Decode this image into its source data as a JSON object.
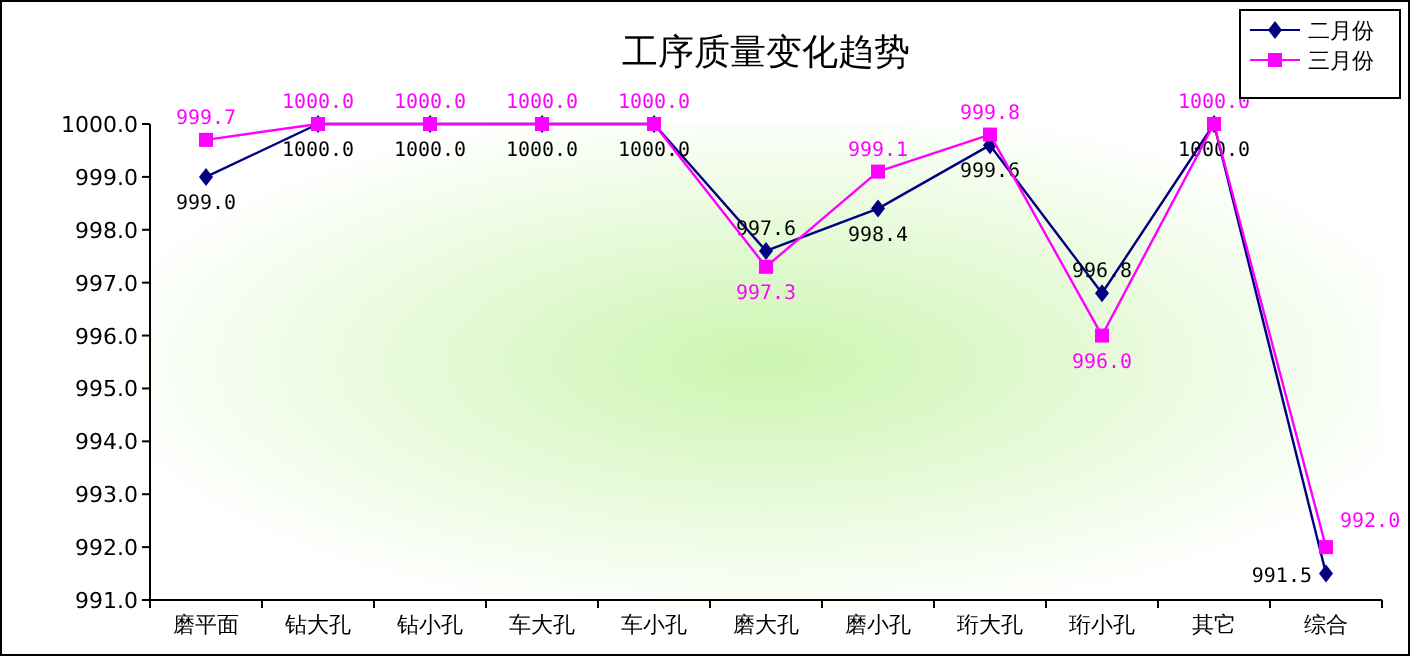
{
  "chart_data": {
    "type": "line",
    "title": "工序质量变化趋势",
    "categories": [
      "磨平面",
      "钻大孔",
      "钻小孔",
      "车大孔",
      "车小孔",
      "磨大孔",
      "磨小孔",
      "珩大孔",
      "珩小孔",
      "其它",
      "综合"
    ],
    "series": [
      {
        "name": "二月份",
        "color": "#000080",
        "marker": "diamond",
        "values": [
          999.0,
          1000.0,
          1000.0,
          1000.0,
          1000.0,
          997.6,
          998.4,
          999.6,
          996.8,
          1000.0,
          991.5
        ],
        "value_labels": [
          "999.0",
          "1000.0",
          "1000.0",
          "1000.0",
          "1000.0",
          "997.6",
          "998.4",
          "999.6",
          "996.8",
          "1000.0",
          "991.5"
        ]
      },
      {
        "name": "三月份",
        "color": "#ff00ff",
        "marker": "square",
        "values": [
          999.7,
          1000.0,
          1000.0,
          1000.0,
          1000.0,
          997.3,
          999.1,
          999.8,
          996.0,
          1000.0,
          992.0
        ],
        "value_labels": [
          "999.7",
          "1000.0",
          "1000.0",
          "1000.0",
          "1000.0",
          "997.3",
          "999.1",
          "999.8",
          "996.0",
          "1000.0",
          "992.0"
        ]
      }
    ],
    "ylim": [
      991,
      1000
    ],
    "yticks": [
      {
        "value": 991,
        "label": "991.0"
      },
      {
        "value": 992,
        "label": "992.0"
      },
      {
        "value": 993,
        "label": "993.0"
      },
      {
        "value": 994,
        "label": "994.0"
      },
      {
        "value": 995,
        "label": "995.0"
      },
      {
        "value": 996,
        "label": "996.0"
      },
      {
        "value": 997,
        "label": "997.0"
      },
      {
        "value": 998,
        "label": "998.0"
      },
      {
        "value": 999,
        "label": "999.0"
      },
      {
        "value": 1000,
        "label": "1000.0"
      }
    ],
    "grid": false,
    "legend": "top right"
  }
}
